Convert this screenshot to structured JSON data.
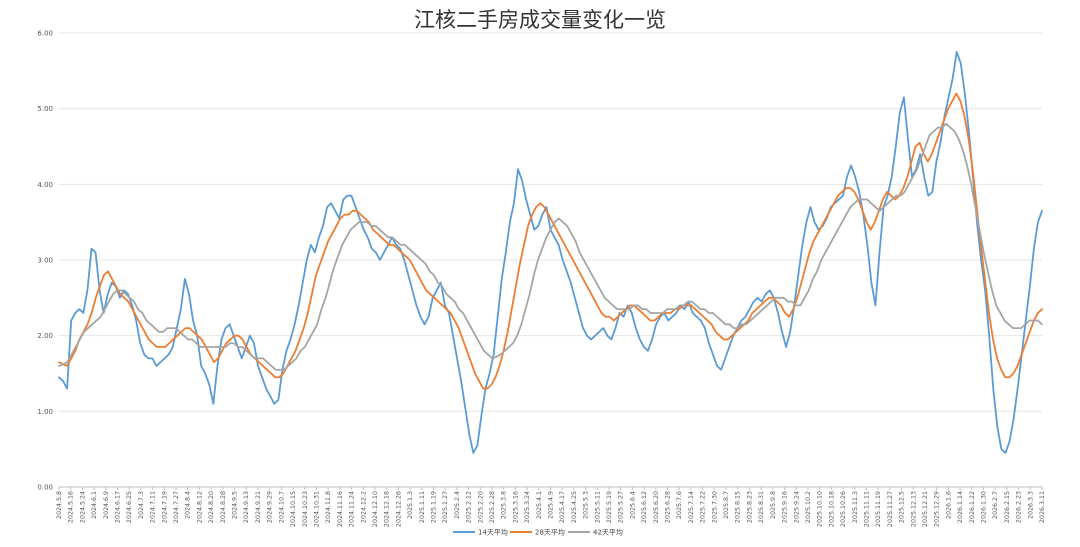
{
  "chart_data": {
    "type": "line",
    "title": "江核二手房成交量变化一览",
    "xlabel": "",
    "ylabel": "",
    "ylim": [
      0,
      6
    ],
    "y_ticks": [
      "0.00",
      "1.00",
      "2.00",
      "3.00",
      "4.00",
      "5.00",
      "6.00"
    ],
    "grid": "horizontal",
    "legend": "bottom-center",
    "x_tick_labels": [
      "2024.5.8",
      "2024.5.16",
      "2024.5.24",
      "2024.6.1",
      "2024.6.9",
      "2024.6.17",
      "2024.6.25",
      "2024.7.3",
      "2024.7.11",
      "2024.7.19",
      "2024.7.27",
      "2024.8.4",
      "2024.8.12",
      "2024.8.20",
      "2024.8.28",
      "2024.9.5",
      "2024.9.13",
      "2024.9.21",
      "2024.9.29",
      "2024.10.7",
      "2024.10.15",
      "2024.10.23",
      "2024.10.31",
      "2024.11.8",
      "2024.11.16",
      "2024.11.24",
      "2024.12.2",
      "2024.12.10",
      "2024.12.18",
      "2024.12.26",
      "2025.1.3",
      "2025.1.11",
      "2025.1.19",
      "2025.1.27",
      "2025.2.4",
      "2025.2.12",
      "2025.2.20",
      "2025.2.28",
      "2025.3.8",
      "2025.3.16",
      "2025.3.24",
      "2025.4.1",
      "2025.4.9",
      "2025.4.17",
      "2025.4.25",
      "2025.5.3",
      "2025.5.11",
      "2025.5.19",
      "2025.5.27",
      "2025.6.4",
      "2025.6.12",
      "2025.6.20",
      "2025.6.28",
      "2025.7.6",
      "2025.7.14",
      "2025.7.22",
      "2025.7.30",
      "2025.8.7",
      "2025.8.15",
      "2025.8.23",
      "2025.8.31",
      "2025.9.8",
      "2025.9.16",
      "2025.9.24",
      "2025.10.2",
      "2025.10.10",
      "2025.10.18",
      "2025.10.26",
      "2025.11.3",
      "2025.11.11",
      "2025.11.19",
      "2025.11.27",
      "2025.12.5",
      "2025.12.13",
      "2025.12.21",
      "2025.12.29",
      "2026.1.6",
      "2026.1.14",
      "2026.1.22",
      "2026.1.30",
      "2026.2.7",
      "2026.2.15",
      "2026.2.23",
      "2026.3.3",
      "2026.3.11"
    ],
    "series": [
      {
        "name": "14天平均",
        "color": "#5b9bd5",
        "values": [
          1.45,
          1.4,
          1.3,
          2.2,
          2.3,
          2.35,
          2.3,
          2.6,
          3.15,
          3.1,
          2.6,
          2.3,
          2.55,
          2.7,
          2.65,
          2.5,
          2.6,
          2.55,
          2.4,
          2.2,
          1.9,
          1.75,
          1.7,
          1.7,
          1.6,
          1.65,
          1.7,
          1.75,
          1.85,
          2.1,
          2.35,
          2.75,
          2.55,
          2.2,
          2.0,
          1.6,
          1.5,
          1.35,
          1.1,
          1.6,
          1.95,
          2.1,
          2.15,
          2.0,
          1.85,
          1.7,
          1.85,
          2.0,
          1.9,
          1.6,
          1.45,
          1.3,
          1.2,
          1.1,
          1.15,
          1.55,
          1.8,
          1.95,
          2.15,
          2.4,
          2.7,
          3.0,
          3.2,
          3.1,
          3.3,
          3.45,
          3.7,
          3.75,
          3.65,
          3.55,
          3.8,
          3.85,
          3.85,
          3.7,
          3.55,
          3.4,
          3.3,
          3.15,
          3.1,
          3.0,
          3.1,
          3.2,
          3.3,
          3.2,
          3.15,
          3.0,
          2.8,
          2.6,
          2.4,
          2.25,
          2.15,
          2.25,
          2.5,
          2.6,
          2.7,
          2.4,
          2.3,
          2.0,
          1.7,
          1.4,
          1.05,
          0.7,
          0.45,
          0.55,
          0.95,
          1.3,
          1.5,
          1.75,
          2.25,
          2.75,
          3.1,
          3.5,
          3.75,
          4.2,
          4.05,
          3.8,
          3.6,
          3.4,
          3.45,
          3.6,
          3.7,
          3.4,
          3.3,
          3.2,
          3.0,
          2.85,
          2.7,
          2.5,
          2.3,
          2.1,
          2.0,
          1.95,
          2.0,
          2.05,
          2.1,
          2.0,
          1.95,
          2.1,
          2.3,
          2.25,
          2.4,
          2.3,
          2.1,
          1.95,
          1.85,
          1.8,
          1.95,
          2.15,
          2.25,
          2.3,
          2.2,
          2.25,
          2.3,
          2.4,
          2.35,
          2.45,
          2.3,
          2.25,
          2.2,
          2.1,
          1.9,
          1.75,
          1.6,
          1.55,
          1.7,
          1.85,
          2.0,
          2.1,
          2.2,
          2.25,
          2.35,
          2.45,
          2.5,
          2.45,
          2.55,
          2.6,
          2.5,
          2.3,
          2.05,
          1.85,
          2.05,
          2.4,
          2.8,
          3.2,
          3.5,
          3.7,
          3.5,
          3.4,
          3.45,
          3.55,
          3.7,
          3.75,
          3.8,
          3.85,
          4.1,
          4.25,
          4.1,
          3.9,
          3.6,
          3.2,
          2.7,
          2.4,
          3.1,
          3.7,
          3.85,
          4.1,
          4.5,
          4.95,
          5.15,
          4.6,
          4.1,
          4.2,
          4.4,
          4.1,
          3.85,
          3.9,
          4.3,
          4.55,
          4.9,
          5.15,
          5.4,
          5.75,
          5.6,
          5.2,
          4.7,
          4.1,
          3.5,
          3.0,
          2.6,
          2.0,
          1.3,
          0.8,
          0.5,
          0.45,
          0.6,
          0.9,
          1.3,
          1.75,
          2.2,
          2.65,
          3.15,
          3.5,
          3.65
        ]
      },
      {
        "name": "28天平均",
        "color": "#ed7d31",
        "values": [
          1.65,
          1.62,
          1.6,
          1.7,
          1.8,
          1.95,
          2.05,
          2.15,
          2.3,
          2.5,
          2.65,
          2.8,
          2.85,
          2.75,
          2.65,
          2.55,
          2.5,
          2.45,
          2.35,
          2.25,
          2.15,
          2.05,
          1.95,
          1.9,
          1.85,
          1.85,
          1.85,
          1.9,
          1.95,
          2.0,
          2.05,
          2.1,
          2.1,
          2.05,
          2.0,
          1.95,
          1.85,
          1.75,
          1.65,
          1.7,
          1.8,
          1.9,
          1.95,
          2.0,
          2.0,
          1.95,
          1.85,
          1.75,
          1.7,
          1.65,
          1.6,
          1.55,
          1.5,
          1.45,
          1.45,
          1.5,
          1.6,
          1.7,
          1.8,
          1.95,
          2.1,
          2.3,
          2.55,
          2.8,
          2.95,
          3.1,
          3.25,
          3.35,
          3.45,
          3.55,
          3.6,
          3.6,
          3.65,
          3.65,
          3.6,
          3.55,
          3.5,
          3.4,
          3.35,
          3.3,
          3.25,
          3.2,
          3.2,
          3.15,
          3.1,
          3.05,
          3.0,
          2.9,
          2.8,
          2.7,
          2.6,
          2.55,
          2.5,
          2.45,
          2.4,
          2.35,
          2.3,
          2.2,
          2.1,
          1.95,
          1.8,
          1.65,
          1.5,
          1.4,
          1.3,
          1.3,
          1.35,
          1.45,
          1.6,
          1.8,
          2.05,
          2.35,
          2.65,
          2.95,
          3.2,
          3.45,
          3.6,
          3.7,
          3.75,
          3.7,
          3.6,
          3.5,
          3.4,
          3.3,
          3.2,
          3.1,
          3.0,
          2.9,
          2.8,
          2.7,
          2.6,
          2.5,
          2.4,
          2.3,
          2.25,
          2.25,
          2.2,
          2.25,
          2.3,
          2.35,
          2.4,
          2.4,
          2.35,
          2.3,
          2.25,
          2.2,
          2.2,
          2.25,
          2.3,
          2.3,
          2.3,
          2.35,
          2.35,
          2.4,
          2.4,
          2.4,
          2.35,
          2.3,
          2.25,
          2.2,
          2.15,
          2.05,
          2.0,
          1.95,
          1.95,
          2.0,
          2.05,
          2.1,
          2.15,
          2.2,
          2.3,
          2.35,
          2.4,
          2.45,
          2.5,
          2.5,
          2.45,
          2.4,
          2.3,
          2.25,
          2.35,
          2.5,
          2.7,
          2.9,
          3.1,
          3.25,
          3.35,
          3.45,
          3.55,
          3.65,
          3.75,
          3.85,
          3.9,
          3.95,
          3.95,
          3.9,
          3.8,
          3.65,
          3.5,
          3.4,
          3.5,
          3.65,
          3.8,
          3.9,
          3.85,
          3.8,
          3.85,
          3.95,
          4.1,
          4.3,
          4.5,
          4.55,
          4.4,
          4.3,
          4.4,
          4.55,
          4.7,
          4.85,
          5.0,
          5.1,
          5.2,
          5.1,
          4.9,
          4.6,
          4.2,
          3.7,
          3.2,
          2.75,
          2.3,
          1.95,
          1.7,
          1.55,
          1.45,
          1.45,
          1.5,
          1.6,
          1.75,
          1.9,
          2.05,
          2.2,
          2.3,
          2.35
        ]
      },
      {
        "name": "42天平均",
        "color": "#a5a5a5",
        "values": [
          1.6,
          1.62,
          1.65,
          1.75,
          1.85,
          1.95,
          2.05,
          2.1,
          2.15,
          2.2,
          2.25,
          2.35,
          2.45,
          2.55,
          2.6,
          2.6,
          2.55,
          2.5,
          2.45,
          2.35,
          2.3,
          2.2,
          2.15,
          2.1,
          2.05,
          2.05,
          2.1,
          2.1,
          2.1,
          2.05,
          2.0,
          1.95,
          1.95,
          1.9,
          1.85,
          1.85,
          1.85,
          1.85,
          1.85,
          1.85,
          1.85,
          1.9,
          1.9,
          1.85,
          1.85,
          1.8,
          1.75,
          1.7,
          1.7,
          1.7,
          1.65,
          1.6,
          1.55,
          1.55,
          1.55,
          1.6,
          1.65,
          1.7,
          1.8,
          1.85,
          1.95,
          2.05,
          2.15,
          2.35,
          2.5,
          2.7,
          2.9,
          3.05,
          3.2,
          3.3,
          3.4,
          3.45,
          3.5,
          3.5,
          3.5,
          3.45,
          3.45,
          3.4,
          3.35,
          3.3,
          3.3,
          3.25,
          3.2,
          3.2,
          3.15,
          3.1,
          3.05,
          3.0,
          2.95,
          2.85,
          2.8,
          2.7,
          2.65,
          2.55,
          2.5,
          2.45,
          2.35,
          2.3,
          2.2,
          2.1,
          2.0,
          1.9,
          1.8,
          1.75,
          1.7,
          1.72,
          1.75,
          1.8,
          1.85,
          1.9,
          2.0,
          2.15,
          2.35,
          2.55,
          2.8,
          3.0,
          3.15,
          3.3,
          3.4,
          3.5,
          3.55,
          3.5,
          3.45,
          3.35,
          3.25,
          3.1,
          3.0,
          2.9,
          2.8,
          2.7,
          2.6,
          2.5,
          2.45,
          2.4,
          2.35,
          2.35,
          2.35,
          2.35,
          2.4,
          2.4,
          2.35,
          2.35,
          2.3,
          2.3,
          2.3,
          2.3,
          2.35,
          2.35,
          2.35,
          2.4,
          2.4,
          2.45,
          2.45,
          2.4,
          2.35,
          2.35,
          2.3,
          2.3,
          2.25,
          2.2,
          2.15,
          2.15,
          2.1,
          2.1,
          2.15,
          2.15,
          2.2,
          2.25,
          2.3,
          2.35,
          2.4,
          2.45,
          2.5,
          2.5,
          2.5,
          2.45,
          2.45,
          2.4,
          2.4,
          2.5,
          2.6,
          2.75,
          2.85,
          3.0,
          3.1,
          3.2,
          3.3,
          3.4,
          3.5,
          3.6,
          3.7,
          3.75,
          3.8,
          3.8,
          3.8,
          3.75,
          3.7,
          3.65,
          3.7,
          3.75,
          3.8,
          3.85,
          3.85,
          3.9,
          4.0,
          4.1,
          4.2,
          4.35,
          4.5,
          4.65,
          4.7,
          4.75,
          4.75,
          4.8,
          4.75,
          4.7,
          4.6,
          4.45,
          4.25,
          4.0,
          3.7,
          3.4,
          3.1,
          2.85,
          2.6,
          2.4,
          2.3,
          2.2,
          2.15,
          2.1,
          2.1,
          2.1,
          2.15,
          2.2,
          2.2,
          2.2,
          2.15
        ]
      }
    ]
  }
}
